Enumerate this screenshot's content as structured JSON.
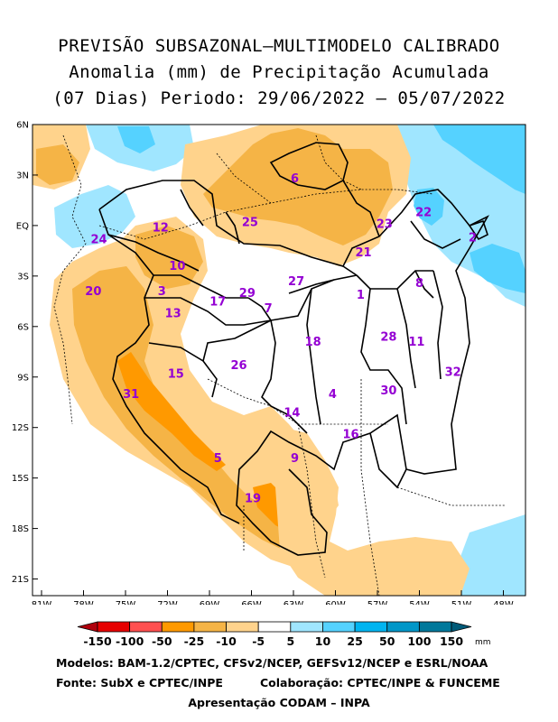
{
  "title": {
    "line1": "PREVISÃO SUBSAZONAL–MULTIMODELO CALIBRADO",
    "line2": "Anomalia (mm) de Precipitação Acumulada",
    "line3": "(07 Dias) Periodo: 29/06/2022 – 05/07/2022"
  },
  "map": {
    "lat_ticks": [
      {
        "lat": 6,
        "label": "6N"
      },
      {
        "lat": 3,
        "label": "3N"
      },
      {
        "lat": 0,
        "label": "EQ"
      },
      {
        "lat": -3,
        "label": "3S"
      },
      {
        "lat": -6,
        "label": "6S"
      },
      {
        "lat": -9,
        "label": "9S"
      },
      {
        "lat": -12,
        "label": "12S"
      },
      {
        "lat": -15,
        "label": "15S"
      },
      {
        "lat": -18,
        "label": "18S"
      },
      {
        "lat": -21,
        "label": "21S"
      }
    ],
    "lon_ticks": [
      {
        "lon": -81,
        "label": "81W"
      },
      {
        "lon": -78,
        "label": "78W"
      },
      {
        "lon": -75,
        "label": "75W"
      },
      {
        "lon": -72,
        "label": "72W"
      },
      {
        "lon": -69,
        "label": "69W"
      },
      {
        "lon": -66,
        "label": "66W"
      },
      {
        "lon": -63,
        "label": "63W"
      },
      {
        "lon": -60,
        "label": "60W"
      },
      {
        "lon": -57,
        "label": "57W"
      },
      {
        "lon": -54,
        "label": "54W"
      },
      {
        "lon": -51,
        "label": "51W"
      },
      {
        "lon": -48,
        "label": "48W"
      }
    ],
    "regions": [
      {
        "id": "1",
        "lon": -58.2,
        "lat": -4.1
      },
      {
        "id": "2",
        "lon": -50.2,
        "lat": -0.7
      },
      {
        "id": "3",
        "lon": -72.4,
        "lat": -3.9
      },
      {
        "id": "4",
        "lon": -60.2,
        "lat": -10.0
      },
      {
        "id": "5",
        "lon": -68.4,
        "lat": -13.8
      },
      {
        "id": "6",
        "lon": -62.9,
        "lat": 2.8
      },
      {
        "id": "7",
        "lon": -64.8,
        "lat": -4.9
      },
      {
        "id": "8",
        "lon": -54.0,
        "lat": -3.4
      },
      {
        "id": "9",
        "lon": -62.9,
        "lat": -13.8
      },
      {
        "id": "10",
        "lon": -71.3,
        "lat": -2.4
      },
      {
        "id": "11",
        "lon": -54.2,
        "lat": -6.9
      },
      {
        "id": "12",
        "lon": -72.5,
        "lat": -0.1
      },
      {
        "id": "13",
        "lon": -71.6,
        "lat": -5.2
      },
      {
        "id": "14",
        "lon": -63.1,
        "lat": -11.1
      },
      {
        "id": "15",
        "lon": -71.4,
        "lat": -8.8
      },
      {
        "id": "16",
        "lon": -58.9,
        "lat": -12.4
      },
      {
        "id": "17",
        "lon": -68.4,
        "lat": -4.5
      },
      {
        "id": "18",
        "lon": -61.6,
        "lat": -6.9
      },
      {
        "id": "19",
        "lon": -65.9,
        "lat": -16.2
      },
      {
        "id": "20",
        "lon": -77.3,
        "lat": -3.9
      },
      {
        "id": "21",
        "lon": -58.0,
        "lat": -1.6
      },
      {
        "id": "22",
        "lon": -53.7,
        "lat": 0.8
      },
      {
        "id": "23",
        "lon": -56.5,
        "lat": 0.1
      },
      {
        "id": "24",
        "lon": -76.9,
        "lat": -0.8
      },
      {
        "id": "25",
        "lon": -66.1,
        "lat": 0.2
      },
      {
        "id": "26",
        "lon": -66.9,
        "lat": -8.3
      },
      {
        "id": "27",
        "lon": -62.8,
        "lat": -3.3
      },
      {
        "id": "28",
        "lon": -56.2,
        "lat": -6.6
      },
      {
        "id": "29",
        "lon": -66.3,
        "lat": -4.0
      },
      {
        "id": "30",
        "lon": -56.2,
        "lat": -9.8
      },
      {
        "id": "31",
        "lon": -74.6,
        "lat": -10.0
      },
      {
        "id": "32",
        "lon": -51.6,
        "lat": -8.7
      }
    ]
  },
  "colorbar": {
    "labels": [
      "-150",
      "-100",
      "-50",
      "-25",
      "-10",
      "-5",
      "5",
      "10",
      "25",
      "50",
      "100",
      "150"
    ],
    "colors": [
      "#b0000c",
      "#e60000",
      "#ff5050",
      "#ff9900",
      "#f5b446",
      "#ffd38c",
      "#ffffff",
      "#a0e6ff",
      "#55d2ff",
      "#00b4f0",
      "#0096c8",
      "#00789b",
      "#005a78"
    ],
    "unit": "mm"
  },
  "credits": {
    "line1": "Modelos: BAM-1.2/CPTEC, CFSv2/NCEP, GEFSv12/NCEP e ESRL/NOAA",
    "line2_left": "Fonte: SubX e CPTEC/INPE",
    "line2_right": "Colaboração: CPTEC/INPE & FUNCEME",
    "line3": "Apresentação CODAM – INPA"
  }
}
